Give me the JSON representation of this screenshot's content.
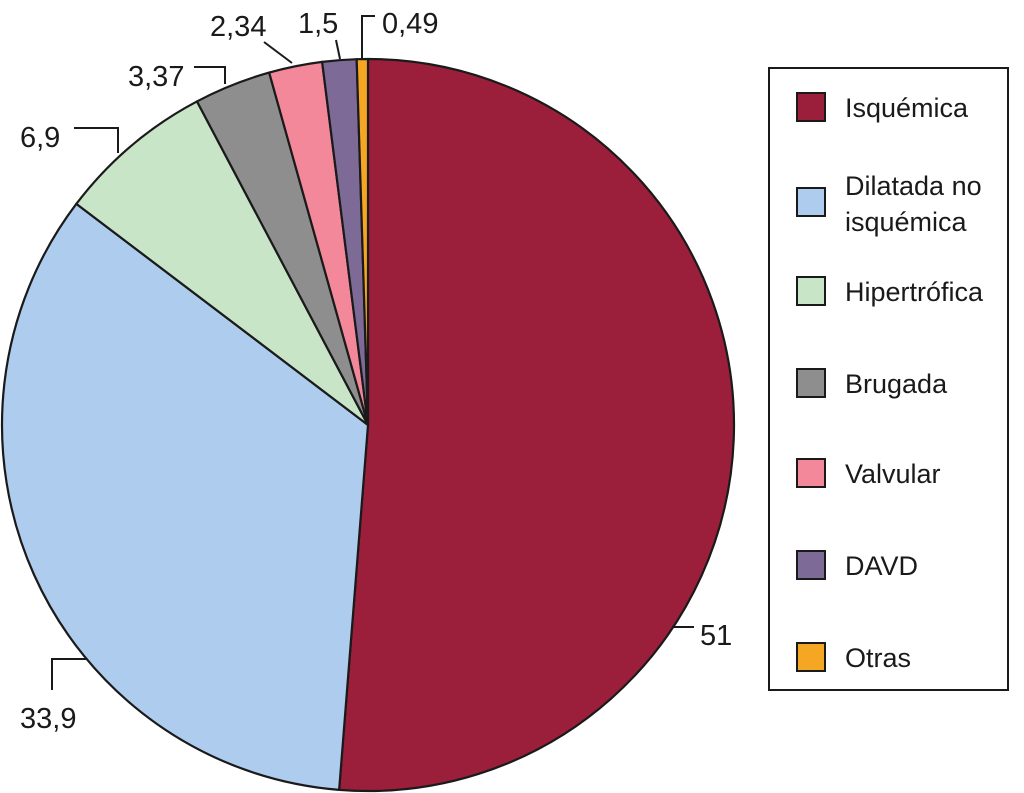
{
  "chart_data": {
    "type": "pie",
    "title": "",
    "start": "top",
    "direction": "clockwise",
    "slices": [
      {
        "label": "Isquémica",
        "legend_lines": [
          "Isquémica"
        ],
        "value": 51,
        "value_label": "51",
        "color": "#9b1f3a"
      },
      {
        "label": "Dilatada no isquémica",
        "legend_lines": [
          "Dilatada no",
          "isquémica"
        ],
        "value": 33.9,
        "value_label": "33,9",
        "color": "#aecdee"
      },
      {
        "label": "Hipertrófica",
        "legend_lines": [
          "Hipertrófica"
        ],
        "value": 6.9,
        "value_label": "6,9",
        "color": "#c8e6c7"
      },
      {
        "label": "Brugada",
        "legend_lines": [
          "Brugada"
        ],
        "value": 3.37,
        "value_label": "3,37",
        "color": "#8e8e8e"
      },
      {
        "label": "Valvular",
        "legend_lines": [
          "Valvular"
        ],
        "value": 2.34,
        "value_label": "2,34",
        "color": "#f2889a"
      },
      {
        "label": "DAVD",
        "legend_lines": [
          "DAVD"
        ],
        "value": 1.5,
        "value_label": "1,5",
        "color": "#7d6a96"
      },
      {
        "label": "Otras",
        "legend_lines": [
          "Otras"
        ],
        "value": 0.49,
        "value_label": "0,49",
        "color": "#f5a623"
      }
    ],
    "legend": {
      "placement": "right"
    }
  }
}
